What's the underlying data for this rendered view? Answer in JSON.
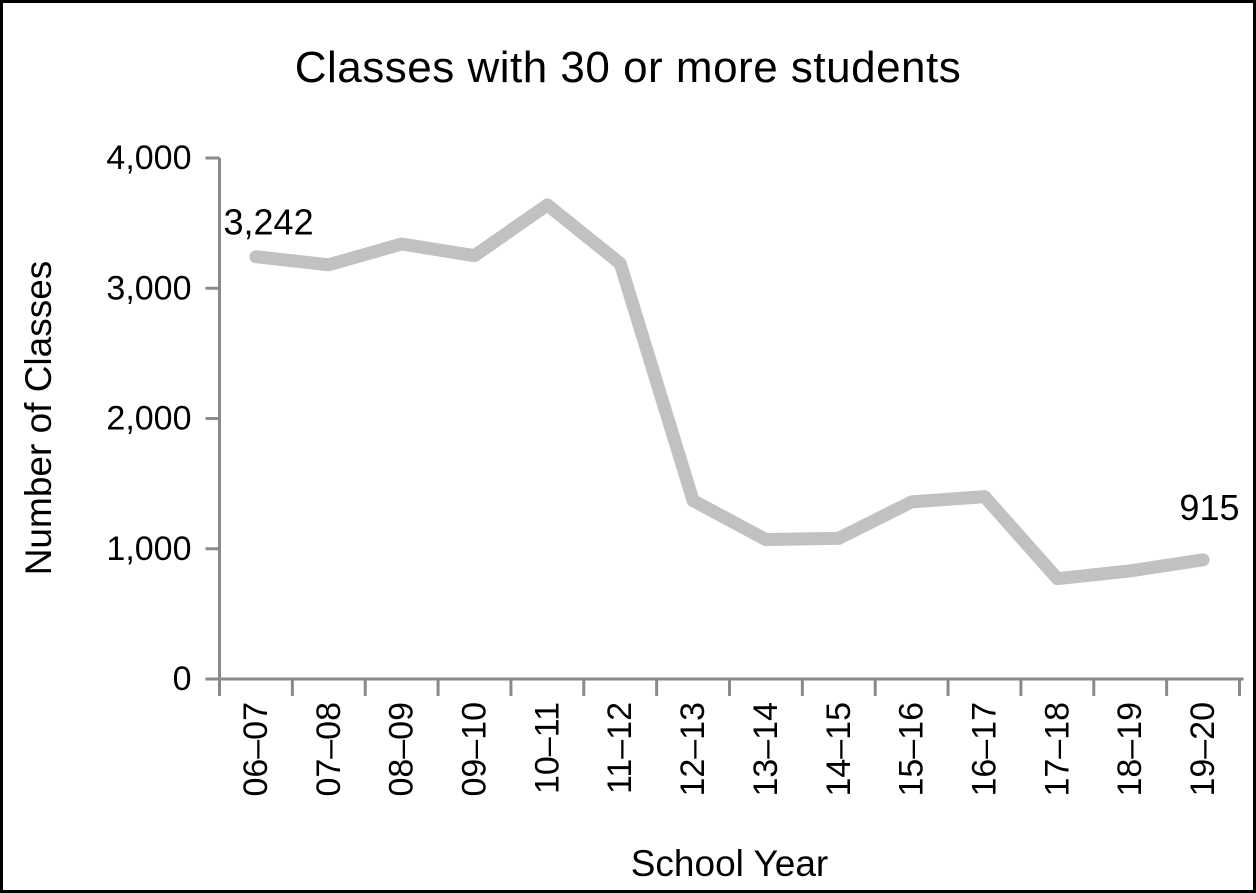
{
  "chart": {
    "title": "Classes with 30 or more students",
    "x_axis_label": "School Year",
    "y_axis_label": "Number of Classes"
  },
  "chart_data": {
    "type": "line",
    "title": "Classes with 30 or more students",
    "xlabel": "School Year",
    "ylabel": "Number of Classes",
    "categories": [
      "06–07",
      "07–08",
      "08–09",
      "09–10",
      "10–11",
      "11–12",
      "12–13",
      "13–14",
      "14–15",
      "15–16",
      "16–17",
      "17–18",
      "18–19",
      "19–20"
    ],
    "values": [
      3242,
      3180,
      3340,
      3250,
      3640,
      3190,
      1370,
      1070,
      1080,
      1360,
      1400,
      770,
      830,
      915
    ],
    "ylim": [
      0,
      4000
    ],
    "yticks": [
      {
        "value": 0,
        "label": "0"
      },
      {
        "value": 1000,
        "label": "1,000"
      },
      {
        "value": 2000,
        "label": "2,000"
      },
      {
        "value": 3000,
        "label": "3,000"
      },
      {
        "value": 4000,
        "label": "4,000"
      }
    ],
    "point_labels": [
      {
        "index": 0,
        "text": "3,242",
        "position": "above-left"
      },
      {
        "index": 13,
        "text": "915",
        "position": "above-right"
      }
    ],
    "grid": false,
    "legend": false,
    "colors": {
      "line": "#c1c1c1",
      "axis": "#8a8a8a",
      "text": "#000000",
      "background": "#ffffff",
      "border": "#000000"
    }
  }
}
